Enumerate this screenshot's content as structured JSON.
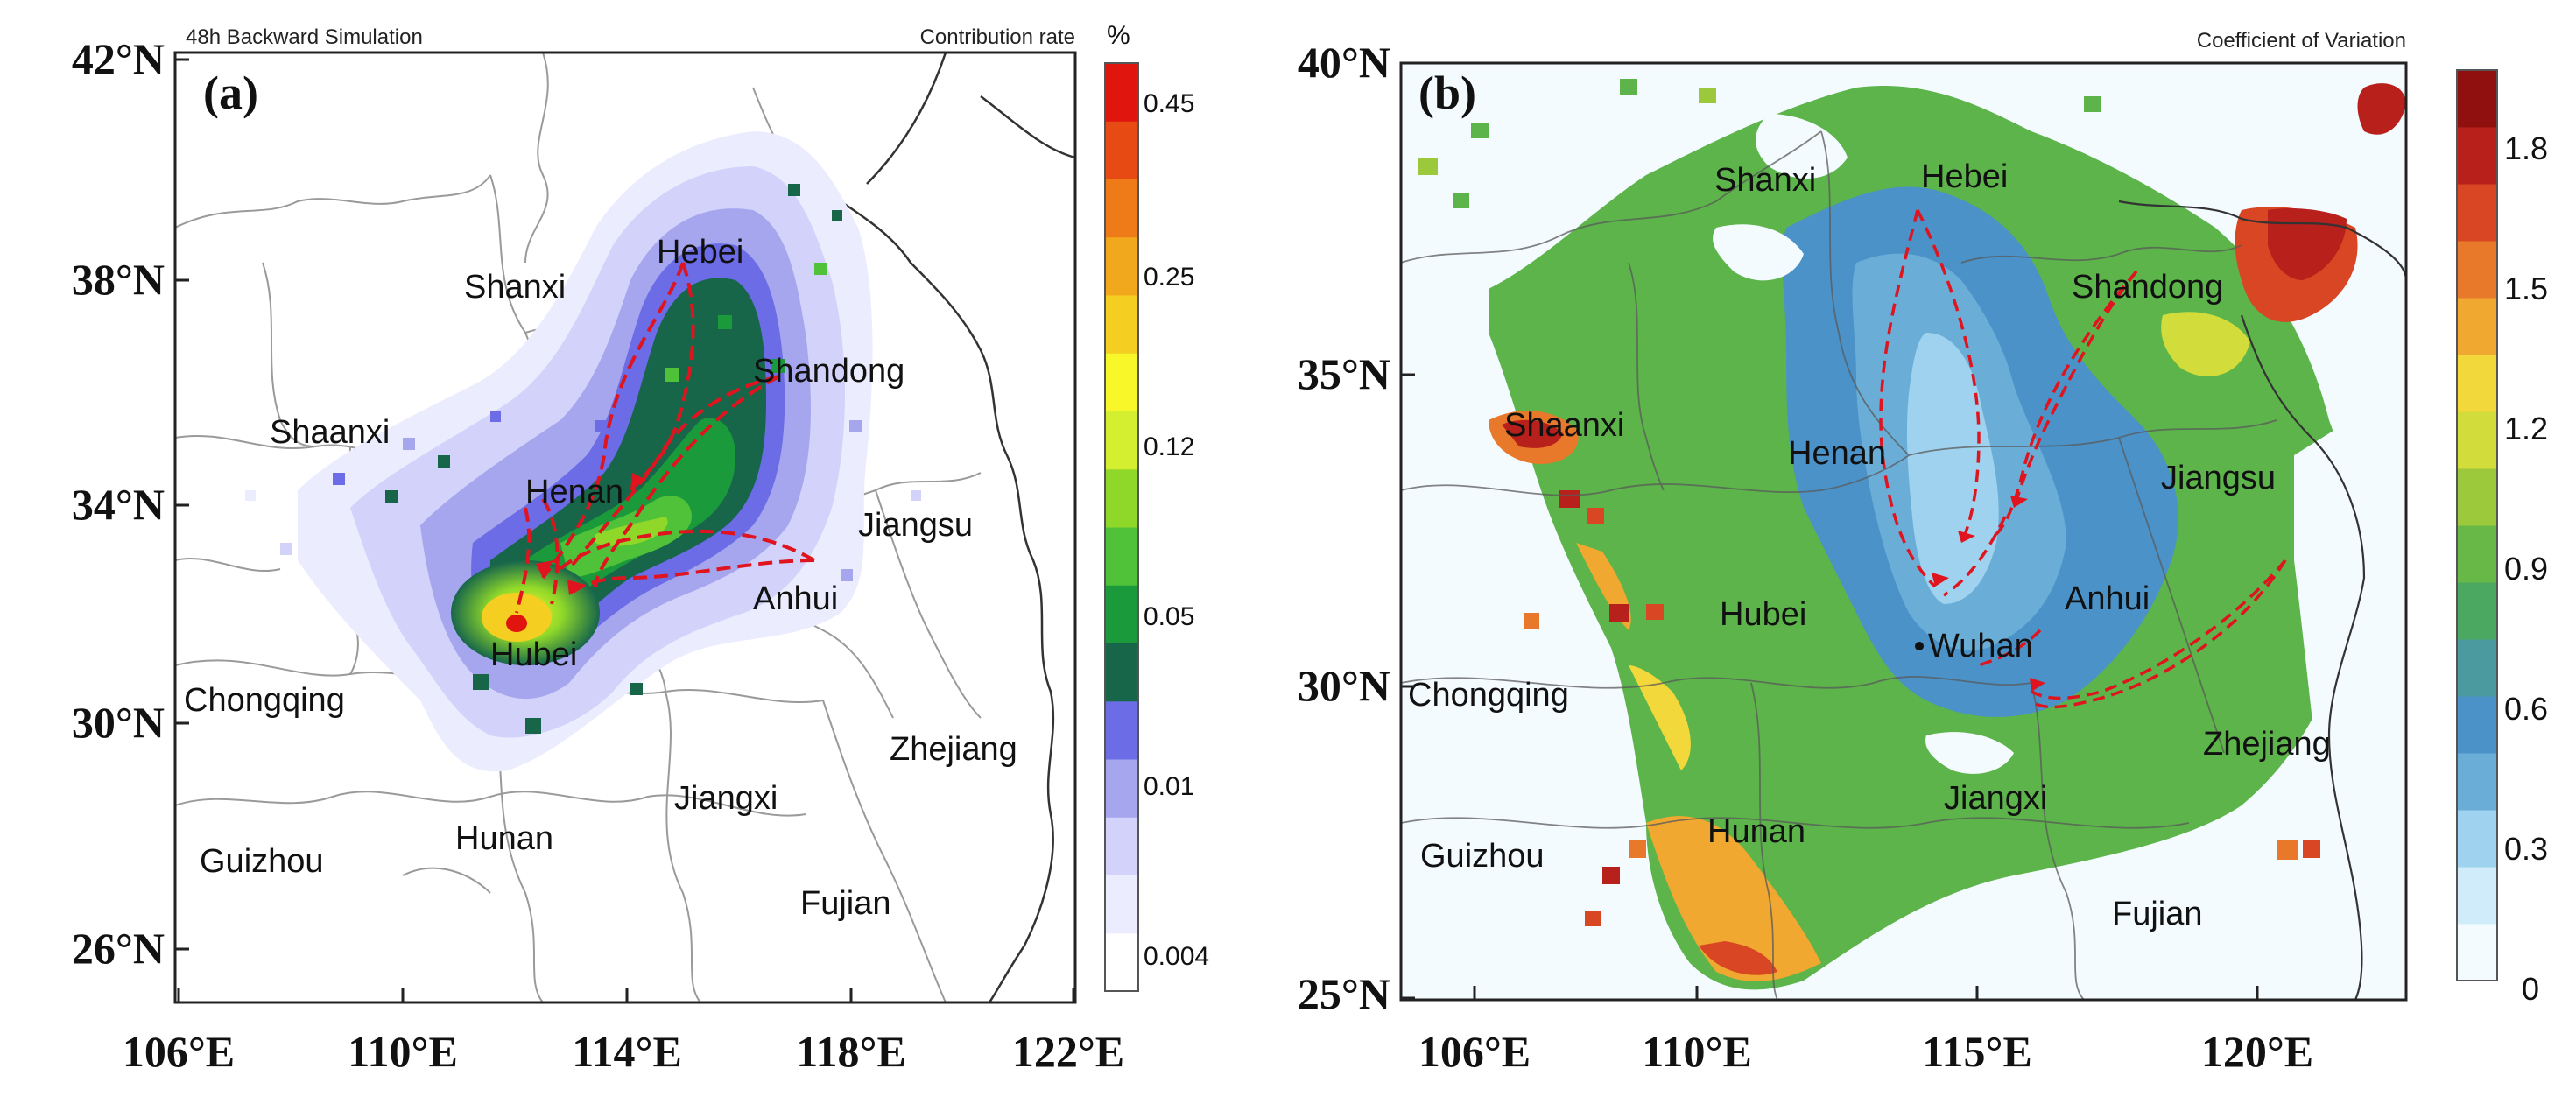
{
  "panel_a": {
    "tag": "(a)",
    "header_left": "48h Backward Simulation",
    "header_right": "Contribution rate",
    "colorbar_unit": "%",
    "colorbar_ticks": [
      "0.45",
      "0.25",
      "0.12",
      "0.05",
      "0.01",
      "0.004"
    ],
    "colorbar_colors": [
      "#ffffff",
      "#ececff",
      "#d2d2fa",
      "#a6a6ee",
      "#6c6ce6",
      "#17664a",
      "#1a9a3a",
      "#4fc23a",
      "#8fd82a",
      "#d4ee30",
      "#f7f72a",
      "#f4cf22",
      "#f2a81c",
      "#ee7a18",
      "#e84a14",
      "#e0150e"
    ],
    "y_labels": [
      "42°N",
      "38°N",
      "34°N",
      "30°N",
      "26°N"
    ],
    "x_labels": [
      "106°E",
      "110°E",
      "114°E",
      "118°E",
      "122°E"
    ],
    "provinces": [
      "Hebei",
      "Shanxi",
      "Shandong",
      "Shaanxi",
      "Henan",
      "Jiangsu",
      "Anhui",
      "Hubei",
      "Chongqing",
      "Zhejiang",
      "Jiangxi",
      "Hunan",
      "Guizhou",
      "Fujian"
    ]
  },
  "panel_b": {
    "tag": "(b)",
    "header_right": "Coefficient of Variation",
    "colorbar_ticks": [
      "1.8",
      "1.5",
      "1.2",
      "0.9",
      "0.6",
      "0.3",
      "0"
    ],
    "colorbar_colors": [
      "#f4fbff",
      "#d0ecfa",
      "#9ed2ee",
      "#6aaed8",
      "#4a92c8",
      "#4a9aa0",
      "#4aa860",
      "#68b848",
      "#9cc83c",
      "#d2dc3a",
      "#f2d83a",
      "#f0a830",
      "#e8782a",
      "#d84624",
      "#b8201c",
      "#901010"
    ],
    "y_labels": [
      "40°N",
      "35°N",
      "30°N",
      "25°N"
    ],
    "x_labels": [
      "106°E",
      "110°E",
      "115°E",
      "120°E"
    ],
    "provinces": [
      "Shanxi",
      "Hebei",
      "Shandong",
      "Shaanxi",
      "Henan",
      "Jiangsu",
      "Hubei",
      "Wuhan",
      "Anhui",
      "Chongqing",
      "Zhejiang",
      "Jiangxi",
      "Hunan",
      "Guizhou",
      "Fujian"
    ]
  }
}
